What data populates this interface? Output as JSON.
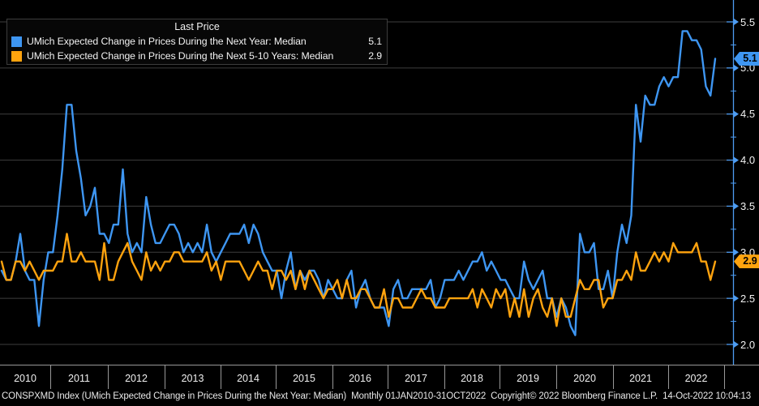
{
  "legend": {
    "title": "Last Price",
    "series": [
      {
        "label": "UMich Expected Change in Prices During the Next Year: Median",
        "value": "5.1",
        "color": "#3e96f2"
      },
      {
        "label": "UMich Expected Change in Prices During the Next 5-10 Years: Median",
        "value": "2.9",
        "color": "#ffa30e"
      }
    ]
  },
  "y_axis": {
    "tick_labels": [
      "5.5",
      "5.0",
      "4.5",
      "4.0",
      "3.5",
      "3.0",
      "2.5",
      "2.0"
    ],
    "tags": [
      {
        "value": "5.1",
        "color": "#3e96f2"
      },
      {
        "value": "2.9",
        "color": "#ffa30e"
      }
    ]
  },
  "x_axis": {
    "years": [
      "2010",
      "2011",
      "2012",
      "2013",
      "2014",
      "2015",
      "2016",
      "2017",
      "2018",
      "2019",
      "2020",
      "2021",
      "2022"
    ]
  },
  "status_bar": {
    "text": "CONSPXMD Index (UMich Expected Change in Prices During the Next Year: Median)  Monthly 01JAN2010-31OCT2022  Copyright© 2022 Bloomberg Finance L.P.  14-Oct-2022 10:04:13"
  },
  "colors": {
    "background": "#000000",
    "gridline": "#3e3e3e",
    "axis": "#4d9cf2",
    "axis_strip": "#989898",
    "text": "#f2f2f2"
  },
  "chart_data": {
    "type": "line",
    "title": "Last Price",
    "frequency": "monthly",
    "x_start": "2010-01",
    "x_end": "2022-10",
    "ylim": [
      2.0,
      5.5
    ],
    "y_tick_step": 0.5,
    "grid": true,
    "legend_position": "top-left",
    "series": [
      {
        "name": "UMich Expected Change in Prices During the Next Year: Median",
        "color": "#3e96f2",
        "last_value": 5.1,
        "values": [
          2.8,
          2.7,
          2.7,
          2.9,
          3.2,
          2.8,
          2.7,
          2.7,
          2.2,
          2.7,
          3.0,
          3.0,
          3.4,
          3.9,
          4.6,
          4.6,
          4.1,
          3.8,
          3.4,
          3.5,
          3.7,
          3.2,
          3.2,
          3.1,
          3.3,
          3.3,
          3.9,
          3.2,
          3.0,
          3.1,
          3.0,
          3.6,
          3.3,
          3.1,
          3.1,
          3.2,
          3.3,
          3.3,
          3.2,
          3.0,
          3.1,
          3.0,
          3.1,
          3.0,
          3.3,
          3.0,
          2.9,
          3.0,
          3.1,
          3.2,
          3.2,
          3.2,
          3.3,
          3.1,
          3.3,
          3.2,
          3.0,
          2.9,
          2.8,
          2.8,
          2.5,
          2.8,
          3.0,
          2.6,
          2.8,
          2.7,
          2.8,
          2.8,
          2.7,
          2.5,
          2.7,
          2.6,
          2.5,
          2.5,
          2.7,
          2.8,
          2.4,
          2.6,
          2.7,
          2.5,
          2.4,
          2.4,
          2.4,
          2.2,
          2.6,
          2.7,
          2.5,
          2.5,
          2.6,
          2.6,
          2.6,
          2.6,
          2.7,
          2.4,
          2.5,
          2.7,
          2.7,
          2.7,
          2.8,
          2.7,
          2.8,
          2.9,
          2.9,
          3.0,
          2.8,
          2.9,
          2.8,
          2.7,
          2.7,
          2.6,
          2.5,
          2.5,
          2.9,
          2.7,
          2.6,
          2.7,
          2.8,
          2.5,
          2.5,
          2.3,
          2.5,
          2.4,
          2.2,
          2.1,
          3.2,
          3.0,
          3.0,
          3.1,
          2.6,
          2.6,
          2.8,
          2.5,
          3.0,
          3.3,
          3.1,
          3.4,
          4.6,
          4.2,
          4.7,
          4.6,
          4.6,
          4.8,
          4.9,
          4.8,
          4.9,
          4.9,
          5.4,
          5.4,
          5.3,
          5.3,
          5.2,
          4.8,
          4.7,
          5.1
        ]
      },
      {
        "name": "UMich Expected Change in Prices During the Next 5-10 Years: Median",
        "color": "#ffa30e",
        "last_value": 2.9,
        "values": [
          2.9,
          2.7,
          2.7,
          2.9,
          2.9,
          2.8,
          2.9,
          2.8,
          2.7,
          2.8,
          2.8,
          2.8,
          2.9,
          2.9,
          3.2,
          2.9,
          2.9,
          3.0,
          2.9,
          2.9,
          2.9,
          2.7,
          3.1,
          2.7,
          2.7,
          2.9,
          3.0,
          3.1,
          2.9,
          2.8,
          2.7,
          3.0,
          2.8,
          2.9,
          2.8,
          2.9,
          2.9,
          3.0,
          3.0,
          2.9,
          2.9,
          2.9,
          2.9,
          2.9,
          3.0,
          2.8,
          2.9,
          2.7,
          2.9,
          2.9,
          2.9,
          2.9,
          2.8,
          2.7,
          2.8,
          2.9,
          2.8,
          2.8,
          2.6,
          2.8,
          2.8,
          2.7,
          2.8,
          2.6,
          2.8,
          2.6,
          2.8,
          2.7,
          2.6,
          2.5,
          2.6,
          2.6,
          2.7,
          2.5,
          2.7,
          2.5,
          2.5,
          2.6,
          2.6,
          2.5,
          2.4,
          2.4,
          2.6,
          2.3,
          2.5,
          2.5,
          2.4,
          2.4,
          2.4,
          2.5,
          2.6,
          2.5,
          2.5,
          2.4,
          2.4,
          2.4,
          2.5,
          2.5,
          2.5,
          2.5,
          2.5,
          2.6,
          2.4,
          2.6,
          2.5,
          2.4,
          2.6,
          2.5,
          2.6,
          2.3,
          2.5,
          2.3,
          2.6,
          2.3,
          2.5,
          2.6,
          2.4,
          2.3,
          2.5,
          2.2,
          2.5,
          2.3,
          2.3,
          2.5,
          2.7,
          2.6,
          2.6,
          2.7,
          2.7,
          2.4,
          2.5,
          2.5,
          2.7,
          2.7,
          2.8,
          2.7,
          3.0,
          2.8,
          2.8,
          2.9,
          3.0,
          2.9,
          3.0,
          2.9,
          3.1,
          3.0,
          3.0,
          3.0,
          3.0,
          3.1,
          2.9,
          2.9,
          2.7,
          2.9
        ]
      }
    ]
  }
}
